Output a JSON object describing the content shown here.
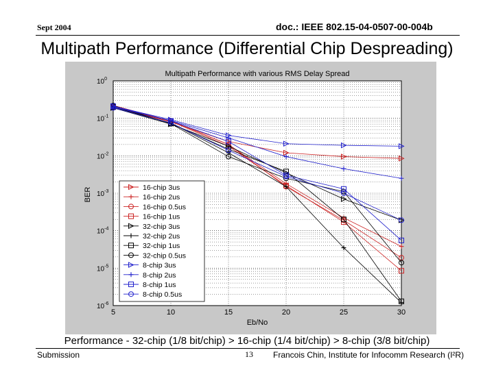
{
  "header": {
    "date": "Sept 2004",
    "doc_id": "doc.: IEEE 802.15-04-0507-00-004b"
  },
  "slide": {
    "title": "Multipath Performance (Differential Chip Despreading)",
    "caption": "Performance - 32-chip (1/8 bit/chip) > 16-chip (1/4 bit/chip) > 8-chip (3/8 bit/chip)"
  },
  "footer": {
    "left": "Submission",
    "page": "13",
    "right": "Francois Chin, Institute for Infocomm Research (I²R)"
  },
  "colors": {
    "figure_bg": "#c8c8c8",
    "plot_bg": "#ffffff",
    "red": "#cc2222",
    "black": "#000000",
    "blue": "#1f1fcc"
  },
  "chart_data": {
    "type": "line",
    "title": "Multipath Performance with various RMS Delay Spread",
    "xlabel": "Eb/No",
    "ylabel": "BER",
    "x": [
      5,
      10,
      15,
      20,
      25,
      30
    ],
    "xlim": [
      5,
      30
    ],
    "ylim": [
      1e-06,
      1
    ],
    "yscale": "log",
    "xticks": [
      "5",
      "10",
      "15",
      "20",
      "25",
      "30"
    ],
    "yticks": [
      {
        "base": "10",
        "exp": "0",
        "value": 1
      },
      {
        "base": "10",
        "exp": "-1",
        "value": 0.1
      },
      {
        "base": "10",
        "exp": "-2",
        "value": 0.01
      },
      {
        "base": "10",
        "exp": "-3",
        "value": 0.001
      },
      {
        "base": "10",
        "exp": "-4",
        "value": 0.0001
      },
      {
        "base": "10",
        "exp": "-5",
        "value": 1e-05
      },
      {
        "base": "10",
        "exp": "-6",
        "value": 1e-06
      }
    ],
    "grid": true,
    "legend_position": "bottom-left",
    "series": [
      {
        "name": "16-chip 3us",
        "color": "#cc2222",
        "marker": "triangle-right",
        "values": [
          0.2,
          0.08,
          0.024,
          0.012,
          0.0095,
          0.0085
        ]
      },
      {
        "name": "16-chip 2us",
        "color": "#cc2222",
        "marker": "plus",
        "values": [
          0.22,
          0.085,
          0.02,
          0.0018,
          0.00022,
          3.8e-05
        ]
      },
      {
        "name": "16-chip 0.5us",
        "color": "#cc2222",
        "marker": "circle",
        "values": [
          0.2,
          0.085,
          0.02,
          0.0015,
          0.00019,
          1.9e-05
        ]
      },
      {
        "name": "16-chip 1us",
        "color": "#cc2222",
        "marker": "square",
        "values": [
          0.2,
          0.083,
          0.018,
          0.0016,
          0.00017,
          8.5e-06
        ]
      },
      {
        "name": "32-chip 3us",
        "color": "#000000",
        "marker": "triangle-right",
        "values": [
          0.19,
          0.07,
          0.018,
          0.0035,
          0.0007,
          0.00019
        ]
      },
      {
        "name": "32-chip 2us",
        "color": "#000000",
        "marker": "plus",
        "values": [
          0.2,
          0.075,
          0.012,
          0.0015,
          3.5e-05,
          1.2e-06
        ]
      },
      {
        "name": "32-chip 1us",
        "color": "#000000",
        "marker": "square",
        "values": [
          0.2,
          0.073,
          0.015,
          0.0038,
          0.0002,
          1.3e-06
        ]
      },
      {
        "name": "32-chip 0.5us",
        "color": "#000000",
        "marker": "circle",
        "values": [
          0.22,
          0.072,
          0.0095,
          0.0025,
          0.0011,
          1.4e-05
        ]
      },
      {
        "name": "8-chip 3us",
        "color": "#1f1fcc",
        "marker": "triangle-right",
        "values": [
          0.21,
          0.092,
          0.035,
          0.021,
          0.019,
          0.018
        ]
      },
      {
        "name": "8-chip 2us",
        "color": "#1f1fcc",
        "marker": "plus",
        "values": [
          0.2,
          0.087,
          0.03,
          0.0095,
          0.0045,
          0.0025
        ]
      },
      {
        "name": "8-chip 1us",
        "color": "#1f1fcc",
        "marker": "square",
        "values": [
          0.21,
          0.085,
          0.024,
          0.003,
          0.0013,
          5.5e-05
        ]
      },
      {
        "name": "8-chip 0.5us",
        "color": "#1f1fcc",
        "marker": "circle",
        "values": [
          0.19,
          0.075,
          0.014,
          0.0028,
          0.001,
          0.00019
        ]
      }
    ]
  }
}
